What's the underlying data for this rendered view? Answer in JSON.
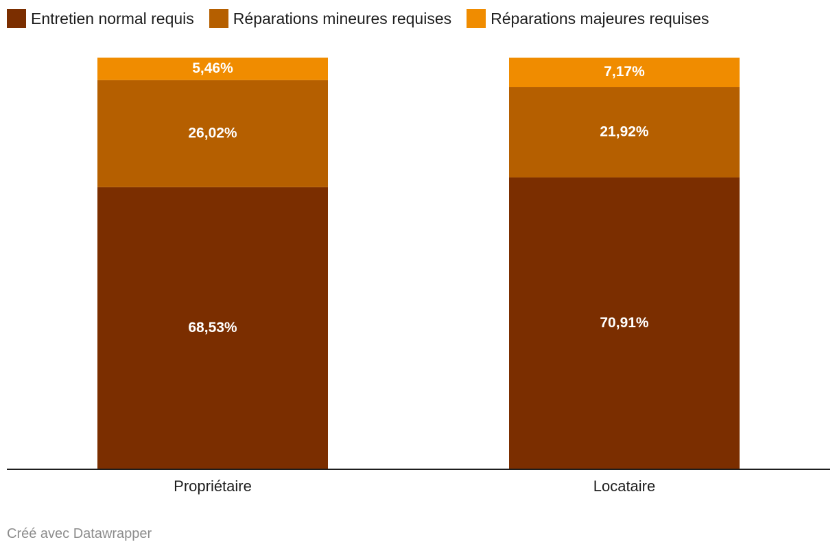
{
  "chart_data": {
    "type": "bar",
    "stacked": true,
    "categories": [
      "Propriétaire",
      "Locataire"
    ],
    "series": [
      {
        "name": "Entretien normal requis",
        "color": "#7b2e00",
        "values": [
          68.53,
          70.91
        ],
        "labels": [
          "68,53%",
          "70,91%"
        ]
      },
      {
        "name": "Réparations mineures requises",
        "color": "#b55f00",
        "values": [
          26.02,
          21.92
        ],
        "labels": [
          "26,02%",
          "21,92%"
        ]
      },
      {
        "name": "Réparations majeures requises",
        "color": "#f08c00",
        "values": [
          5.46,
          7.17
        ],
        "labels": [
          "5,46%",
          "7,17%"
        ]
      }
    ],
    "ylim": [
      0,
      100
    ],
    "grid": false,
    "legend": "top-left"
  },
  "footer": {
    "credit": "Créé avec Datawrapper"
  }
}
